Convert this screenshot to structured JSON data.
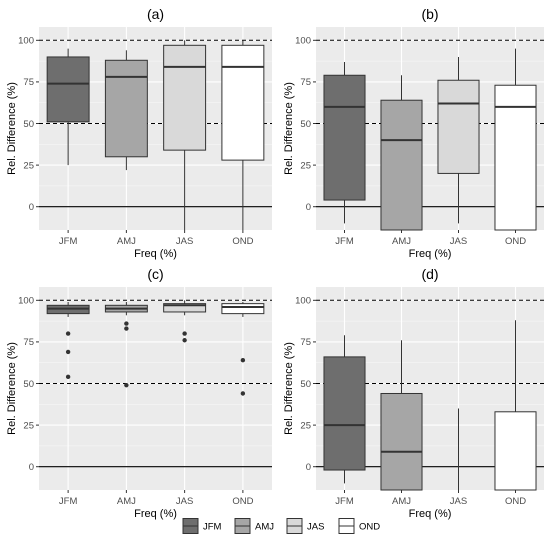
{
  "chart_data": [
    {
      "type": "box",
      "title": "(a)",
      "xlabel": "Freq (%)",
      "ylabel": "Rel. Difference (%)",
      "categories": [
        "JFM",
        "AMJ",
        "JAS",
        "OND"
      ],
      "yticks": [
        0,
        25,
        50,
        75,
        100
      ],
      "ylim": [
        -14,
        108
      ],
      "reference_lines": {
        "solid": [
          0
        ],
        "dashed": [
          50,
          100
        ]
      },
      "boxes": [
        {
          "category": "JFM",
          "whisker_low": 25,
          "q1": 51,
          "median": 74,
          "q3": 90,
          "whisker_high": 95,
          "outliers": []
        },
        {
          "category": "AMJ",
          "whisker_low": 22,
          "q1": 30,
          "median": 78,
          "q3": 88,
          "whisker_high": 94,
          "outliers": []
        },
        {
          "category": "JAS",
          "whisker_low": -14,
          "q1": 34,
          "median": 84,
          "q3": 97,
          "whisker_high": 100,
          "outliers": []
        },
        {
          "category": "OND",
          "whisker_low": -14,
          "q1": 28,
          "median": 84,
          "q3": 97,
          "whisker_high": 100,
          "outliers": []
        }
      ]
    },
    {
      "type": "box",
      "title": "(b)",
      "xlabel": "Freq (%)",
      "ylabel": "Rel. Difference (%)",
      "categories": [
        "JFM",
        "AMJ",
        "JAS",
        "OND"
      ],
      "yticks": [
        0,
        25,
        50,
        75,
        100
      ],
      "ylim": [
        -14,
        108
      ],
      "reference_lines": {
        "solid": [
          0
        ],
        "dashed": [
          50,
          100
        ]
      },
      "boxes": [
        {
          "category": "JFM",
          "whisker_low": -10,
          "q1": 4,
          "median": 60,
          "q3": 79,
          "whisker_high": 87,
          "outliers": []
        },
        {
          "category": "AMJ",
          "whisker_low": -14,
          "q1": -14,
          "median": 40,
          "q3": 64,
          "whisker_high": 79,
          "outliers": []
        },
        {
          "category": "JAS",
          "whisker_low": -10,
          "q1": 20,
          "median": 62,
          "q3": 76,
          "whisker_high": 90,
          "outliers": []
        },
        {
          "category": "OND",
          "whisker_low": -14,
          "q1": -14,
          "median": 60,
          "q3": 73,
          "whisker_high": 95,
          "outliers": []
        }
      ]
    },
    {
      "type": "box",
      "title": "(c)",
      "xlabel": "Freq (%)",
      "ylabel": "Rel. Difference (%)",
      "categories": [
        "JFM",
        "AMJ",
        "JAS",
        "OND"
      ],
      "yticks": [
        0,
        25,
        50,
        75,
        100
      ],
      "ylim": [
        -14,
        108
      ],
      "reference_lines": {
        "solid": [
          0
        ],
        "dashed": [
          50,
          100
        ]
      },
      "boxes": [
        {
          "category": "JFM",
          "whisker_low": 90,
          "q1": 92,
          "median": 95,
          "q3": 97,
          "whisker_high": 99,
          "outliers": [
            80,
            69,
            54
          ]
        },
        {
          "category": "AMJ",
          "whisker_low": 91,
          "q1": 93,
          "median": 95,
          "q3": 97,
          "whisker_high": 99,
          "outliers": [
            86,
            83,
            49
          ]
        },
        {
          "category": "JAS",
          "whisker_low": 91,
          "q1": 93,
          "median": 97,
          "q3": 98,
          "whisker_high": 100,
          "outliers": [
            80,
            76
          ]
        },
        {
          "category": "OND",
          "whisker_low": 90,
          "q1": 92,
          "median": 96,
          "q3": 98,
          "whisker_high": 99,
          "outliers": [
            64,
            44
          ]
        }
      ]
    },
    {
      "type": "box",
      "title": "(d)",
      "xlabel": "Freq (%)",
      "ylabel": "Rel. Difference (%)",
      "categories": [
        "JFM",
        "AMJ",
        "JAS",
        "OND"
      ],
      "yticks": [
        0,
        25,
        50,
        75,
        100
      ],
      "ylim": [
        -14,
        108
      ],
      "reference_lines": {
        "solid": [
          0
        ],
        "dashed": [
          50,
          100
        ]
      },
      "boxes": [
        {
          "category": "JFM",
          "whisker_low": -10,
          "q1": -2,
          "median": 25,
          "q3": 66,
          "whisker_high": 79,
          "outliers": []
        },
        {
          "category": "AMJ",
          "whisker_low": -14,
          "q1": -14,
          "median": 9,
          "q3": 44,
          "whisker_high": 76,
          "outliers": []
        },
        {
          "category": "JAS",
          "whisker_low": -14,
          "q1": null,
          "median": null,
          "q3": null,
          "whisker_high": 35,
          "outliers": []
        },
        {
          "category": "OND",
          "whisker_low": -14,
          "q1": -14,
          "median": null,
          "q3": 33,
          "whisker_high": 88,
          "outliers": []
        }
      ]
    }
  ],
  "legend": {
    "placement": "bottom",
    "entries": [
      {
        "name": "JFM",
        "color": "#6e6e6e"
      },
      {
        "name": "AMJ",
        "color": "#a6a6a6"
      },
      {
        "name": "JAS",
        "color": "#d9d9d9"
      },
      {
        "name": "OND",
        "color": "#ffffff"
      }
    ]
  },
  "colors": {
    "panel_background": "#ebebeb",
    "grid": "#ffffff",
    "box_outline": "#333333"
  }
}
